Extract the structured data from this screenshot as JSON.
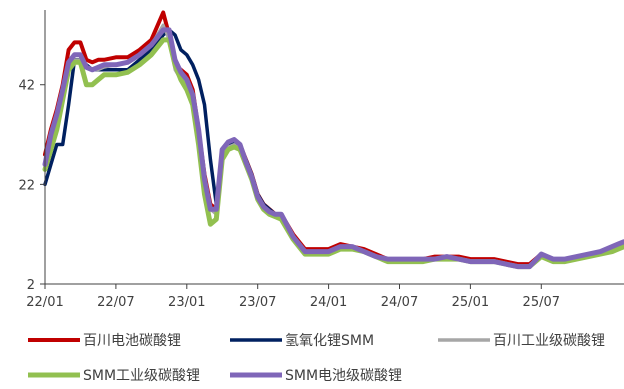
{
  "chart_data": {
    "type": "line",
    "title": "",
    "xlabel": "",
    "ylabel": "",
    "ylim": [
      2,
      57
    ],
    "yticks": [
      2,
      22,
      42
    ],
    "x_tick_labels": [
      "22/01",
      "22/07",
      "23/01",
      "23/07",
      "24/01",
      "24/07",
      "25/01",
      "25/07"
    ],
    "x_tick_months": [
      0,
      6,
      12,
      18,
      24,
      30,
      36,
      42
    ],
    "xlim_months": [
      0,
      49
    ],
    "grid": false,
    "legend_position": "bottom",
    "x": [
      0,
      0.5,
      1,
      1.5,
      2,
      2.5,
      3,
      3.5,
      4,
      4.5,
      5,
      6,
      7,
      8,
      9,
      10,
      10.5,
      11,
      11.5,
      12,
      12.5,
      13,
      13.5,
      14,
      14.5,
      15,
      15.5,
      16,
      16.5,
      17,
      17.5,
      18,
      18.5,
      19,
      19.5,
      20,
      21,
      22,
      23,
      24,
      25,
      26,
      27,
      28,
      29,
      30,
      31,
      32,
      33,
      34,
      35,
      36,
      37,
      38,
      39,
      40,
      41,
      42,
      43,
      44,
      45,
      46,
      47,
      48,
      48.5,
      49
    ],
    "series": [
      {
        "name": "百川电池碳酸锂",
        "color": "#C00000",
        "width": 4,
        "values": [
          28,
          33,
          37,
          42,
          49,
          50.5,
          50.5,
          47,
          46.5,
          47,
          47,
          47.5,
          47.5,
          49,
          51,
          56.5,
          52,
          46,
          45,
          44,
          41,
          33,
          24,
          18,
          17,
          29,
          30.5,
          31,
          30,
          27,
          24,
          20,
          18,
          17,
          16,
          16,
          12,
          9,
          9,
          9,
          10,
          9.5,
          9,
          8,
          7,
          7,
          7,
          7,
          7.5,
          7.5,
          7.5,
          7,
          7,
          7,
          6.5,
          6,
          6,
          8,
          7,
          7,
          7.5,
          8,
          8.5,
          9,
          9.5,
          10
        ]
      },
      {
        "name": "氢氧化锂SMM",
        "color": "#002060",
        "width": 3.5,
        "values": [
          22,
          26,
          30,
          30,
          38,
          47,
          47,
          46,
          45,
          45,
          45,
          45,
          45,
          47,
          49,
          52,
          53,
          52,
          49,
          48,
          46,
          43,
          38,
          27,
          18,
          28,
          30,
          30.5,
          30,
          27,
          24,
          20,
          18,
          17,
          16,
          15,
          11,
          8.5,
          8,
          8,
          9,
          9,
          8.5,
          7.5,
          6.5,
          6.5,
          6.5,
          6.5,
          7,
          7,
          7,
          6.5,
          6.5,
          6.5,
          6,
          5.5,
          5.5,
          7.5,
          6.5,
          6.5,
          7,
          7.5,
          8,
          8.5,
          9,
          9.5
        ]
      },
      {
        "name": "百川工业级碳酸锂",
        "color": "#A6A6A6",
        "width": 3,
        "values": [
          26,
          30,
          34,
          40,
          45,
          47,
          47,
          45.5,
          45,
          45,
          45.5,
          46,
          46.5,
          48,
          50,
          54,
          51,
          45,
          43,
          42,
          39,
          31,
          22,
          17,
          16,
          28,
          29.5,
          30,
          29,
          26,
          23,
          19,
          17.5,
          16.5,
          15.5,
          15.5,
          11.5,
          8.5,
          8.5,
          8.5,
          9.5,
          9,
          8.5,
          7.5,
          6.5,
          6.5,
          6.5,
          6.5,
          7,
          7,
          7,
          6.5,
          6.5,
          6.5,
          6,
          5.5,
          5.5,
          7.5,
          6.5,
          6.5,
          7,
          7.5,
          8,
          8.5,
          9,
          9.5
        ]
      },
      {
        "name": "SMM工业级碳酸锂",
        "color": "#92C050",
        "width": 5,
        "values": [
          25,
          29,
          33,
          39,
          45,
          46.5,
          46.5,
          42,
          42,
          43,
          44,
          44,
          44.5,
          46,
          48,
          51,
          51,
          46,
          43,
          41,
          38,
          30,
          20,
          14,
          15,
          27,
          29,
          29.5,
          29,
          26,
          23,
          19,
          17,
          16,
          15.5,
          15,
          11,
          8,
          8,
          8,
          9,
          9,
          8.5,
          7.5,
          6.5,
          6.5,
          6.5,
          6.5,
          7,
          7,
          7,
          6.5,
          6.5,
          6.5,
          6,
          5.5,
          5.5,
          7.5,
          6.5,
          6.5,
          7,
          7.5,
          8,
          8.5,
          9,
          9.5
        ]
      },
      {
        "name": "SMM电池级碳酸锂",
        "color": "#7F66B8",
        "width": 5,
        "values": [
          26,
          32,
          36,
          41,
          46.5,
          48,
          48,
          45.5,
          45,
          45.5,
          46,
          46,
          46.5,
          48,
          50,
          53,
          53,
          47,
          44.5,
          43,
          40,
          33,
          23,
          17,
          17,
          29,
          30.5,
          31,
          30,
          26.5,
          23.5,
          19.5,
          17.5,
          16.5,
          16,
          16,
          11.5,
          8.5,
          8.5,
          8.5,
          9.5,
          9.5,
          8.5,
          7.5,
          7,
          7,
          7,
          7,
          7,
          7.5,
          7,
          6.5,
          6.5,
          6.5,
          6,
          5.5,
          5.5,
          8,
          7,
          7,
          7.5,
          8,
          8.5,
          9.5,
          10,
          10.5
        ]
      }
    ]
  }
}
